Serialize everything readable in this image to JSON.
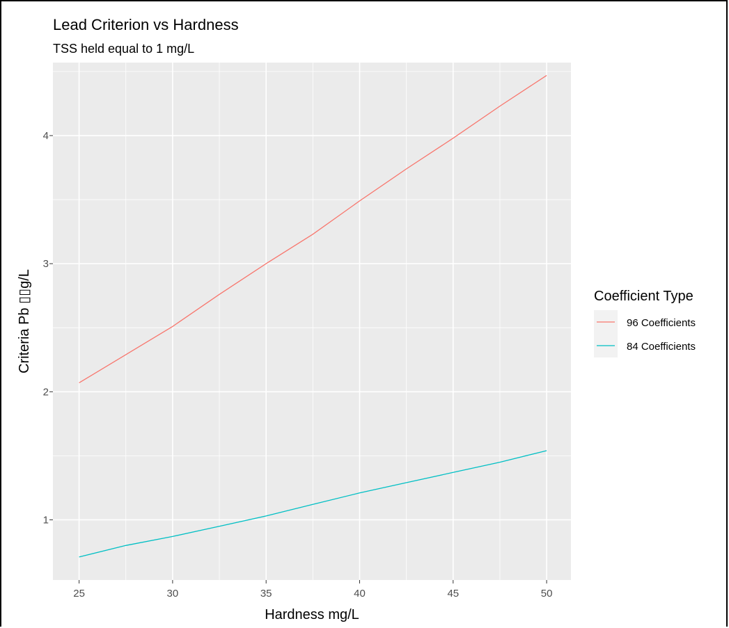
{
  "chart_data": {
    "type": "line",
    "title": "Lead Criterion vs Hardness",
    "subtitle": "TSS held equal to 1 mg/L",
    "xlabel": "Hardness mg/L",
    "ylabel": "Criteria Pb ▯▯g/L",
    "xlim": [
      23.6,
      51.3
    ],
    "ylim": [
      0.53,
      4.57
    ],
    "x_ticks": [
      "25",
      "30",
      "35",
      "40",
      "45",
      "50"
    ],
    "y_ticks": [
      "1",
      "2",
      "3",
      "4"
    ],
    "grid": true,
    "legend": {
      "title": "Coefficient Type",
      "position": "right"
    },
    "x": [
      25,
      27.5,
      30,
      32.5,
      35,
      37.5,
      40,
      42.5,
      45,
      47.5,
      50
    ],
    "series": [
      {
        "name": "96 Coefficients",
        "color": "#F8766D",
        "values": [
          2.07,
          2.29,
          2.51,
          2.76,
          3.0,
          3.23,
          3.49,
          3.74,
          3.98,
          4.23,
          4.47
        ]
      },
      {
        "name": "84 Coefficients",
        "color": "#00BFC4",
        "values": [
          0.71,
          0.8,
          0.87,
          0.95,
          1.03,
          1.12,
          1.21,
          1.29,
          1.37,
          1.45,
          1.54
        ]
      }
    ]
  }
}
